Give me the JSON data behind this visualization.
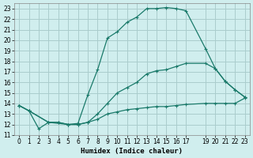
{
  "xlabel": "Humidex (Indice chaleur)",
  "bg_color": "#d0eeee",
  "grid_color": "#aacccc",
  "line_color": "#1a7a6a",
  "line1_x": [
    0,
    1,
    2,
    3,
    4,
    5,
    6,
    7,
    8,
    9,
    10,
    11,
    12,
    13,
    14,
    15,
    16,
    17,
    19,
    20,
    21,
    22,
    23
  ],
  "line1_y": [
    13.8,
    13.3,
    11.6,
    12.2,
    12.2,
    12.0,
    12.1,
    14.8,
    17.2,
    20.2,
    20.8,
    21.7,
    22.2,
    23.0,
    23.0,
    23.1,
    23.0,
    22.8,
    19.2,
    17.3,
    16.1,
    15.3,
    14.6
  ],
  "line2_x": [
    0,
    1,
    3,
    4,
    5,
    6,
    7,
    8,
    9,
    10,
    11,
    12,
    13,
    14,
    15,
    16,
    17,
    19,
    20,
    21,
    22,
    23
  ],
  "line2_y": [
    13.8,
    13.3,
    12.2,
    12.2,
    12.0,
    12.0,
    12.2,
    13.0,
    14.0,
    15.0,
    15.5,
    16.0,
    16.8,
    17.1,
    17.2,
    17.5,
    17.8,
    17.8,
    17.3,
    16.1,
    15.3,
    14.6
  ],
  "line3_x": [
    0,
    1,
    3,
    5,
    6,
    7,
    8,
    9,
    10,
    11,
    12,
    13,
    14,
    15,
    16,
    17,
    19,
    20,
    21,
    22,
    23
  ],
  "line3_y": [
    13.8,
    13.3,
    12.2,
    12.0,
    12.0,
    12.2,
    12.5,
    13.0,
    13.2,
    13.4,
    13.5,
    13.6,
    13.7,
    13.7,
    13.8,
    13.9,
    14.0,
    14.0,
    14.0,
    14.0,
    14.5
  ],
  "xlim": [
    -0.5,
    23.5
  ],
  "ylim": [
    11,
    23.5
  ],
  "yticks": [
    11,
    12,
    13,
    14,
    15,
    16,
    17,
    18,
    19,
    20,
    21,
    22,
    23
  ],
  "xticks": [
    0,
    1,
    2,
    3,
    4,
    5,
    6,
    7,
    8,
    9,
    10,
    11,
    12,
    13,
    14,
    15,
    16,
    17,
    19,
    20,
    21,
    22,
    23
  ]
}
